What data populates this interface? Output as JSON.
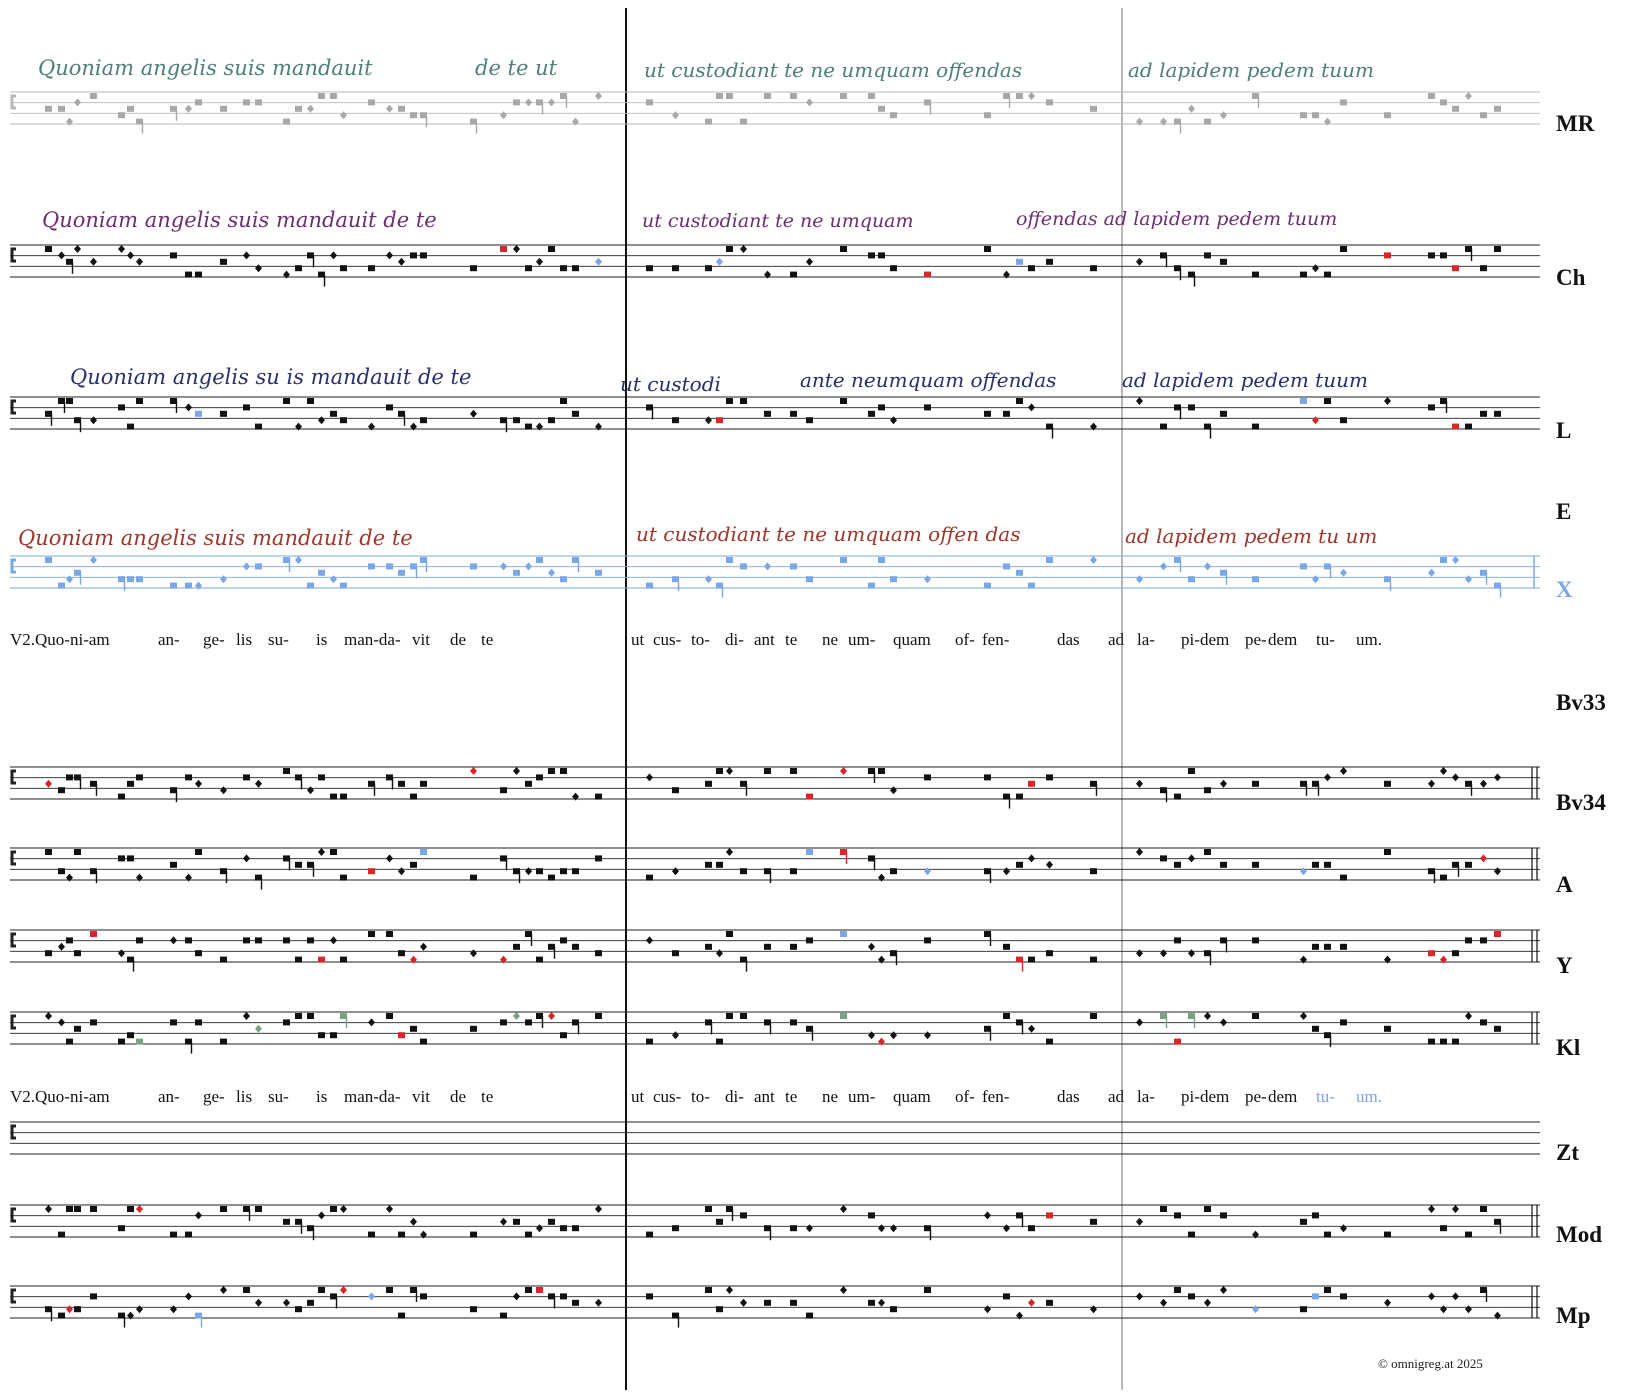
{
  "staves": [
    {
      "id": "MR",
      "label": "MR",
      "style": "gray",
      "clef": true,
      "final_bar": false
    },
    {
      "id": "Ch",
      "label": "Ch",
      "style": "black",
      "clef": true,
      "final_bar": false
    },
    {
      "id": "L",
      "label": "L",
      "style": "black",
      "clef": true,
      "final_bar": false
    },
    {
      "id": "X",
      "label": "X",
      "style": "blue",
      "clef": true,
      "final_bar": false
    },
    {
      "id": "Bv34",
      "label": "Bv34",
      "style": "black",
      "clef": true,
      "final_bar": true
    },
    {
      "id": "A",
      "label": "A",
      "style": "black",
      "clef": true,
      "final_bar": true
    },
    {
      "id": "Y",
      "label": "Y",
      "style": "black",
      "clef": true,
      "final_bar": true
    },
    {
      "id": "Kl",
      "label": "Kl",
      "style": "black",
      "clef": true,
      "final_bar": true
    },
    {
      "id": "Zt",
      "label": "Zt",
      "style": "empty",
      "clef": true,
      "final_bar": false
    },
    {
      "id": "Mod",
      "label": "Mod",
      "style": "black",
      "clef": true,
      "final_bar": true
    },
    {
      "id": "Mp",
      "label": "Mp",
      "style": "black",
      "clef": true,
      "final_bar": true
    }
  ],
  "extra_labels": {
    "E": "E",
    "Bv33": "Bv33"
  },
  "manuscript_texts": [
    {
      "id": "MR",
      "text": "Quoniam angelis suis mandauit",
      "text2": "de te ut",
      "text3": "ut custodiant te ne umquam offendas",
      "text4": "ad lapidem pedem tuum",
      "color": "#4f7f7a"
    },
    {
      "id": "Ch",
      "text": "Quoniam angelis suis mandauit de te",
      "text3": "ut custodiant te ne umquam",
      "text4": "offendas ad lapidem pedem tuum",
      "color": "#6b2f72"
    },
    {
      "id": "L",
      "text": "Quoniam angelis su is mandauit de te",
      "text2": "ut custodi",
      "text3": "ante neumquam offendas",
      "text4": "ad lapidem pedem tuum",
      "color": "#2a2f6e"
    },
    {
      "id": "E",
      "text": "Quoniam angelis suis mandauit de te",
      "text3": "ut custodiant te ne umquam offen das",
      "text4": "ad lapidem pedem tu um",
      "color": "#a0362a"
    }
  ],
  "lyrics_1": [
    "V2.Quo-ni-am",
    "an-",
    "ge-",
    "lis",
    "su-",
    "is",
    "man-da-",
    "vit",
    "de",
    "te",
    "ut",
    "cus-",
    "to-",
    "di-",
    "ant",
    "te",
    "ne",
    "um-",
    "quam",
    "of-",
    "fen-",
    "das",
    "ad",
    "la-",
    "pi-",
    "dem",
    "pe-",
    "dem",
    "tu-",
    "um."
  ],
  "lyrics_2": [
    "V2.Quo-ni-am",
    "an-",
    "ge-",
    "lis",
    "su-",
    "is",
    "man-da-",
    "vit",
    "de",
    "te",
    "ut",
    "cus-",
    "to-",
    "di-",
    "ant",
    "te",
    "ne",
    "um-",
    "quam",
    "of-",
    "fen-",
    "das",
    "ad",
    "la-",
    "pi-",
    "dem",
    "pe-",
    "dem",
    "tu-",
    "um."
  ],
  "lyrics_2_highlight_color": "#7aa7e8",
  "colors": {
    "black": "#111111",
    "gray": "#a8a8a8",
    "blue": "#7aa7e8",
    "red": "#d8262a",
    "green": "#7aa183"
  },
  "copyright": "©  omnigreg.at     2025"
}
